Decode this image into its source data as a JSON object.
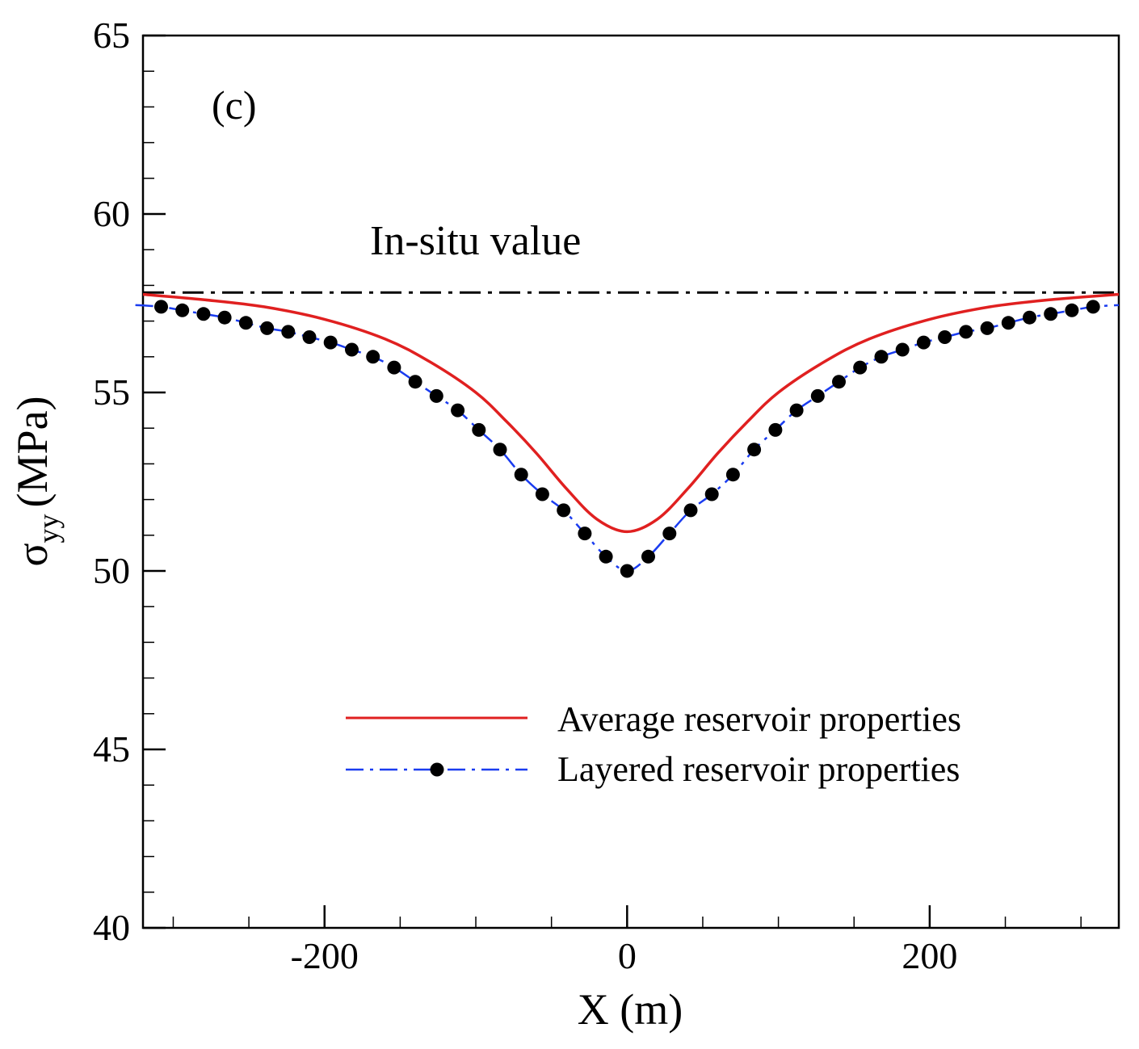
{
  "chart_data": {
    "type": "line",
    "panel_label": "(c)",
    "xlabel": "X (m)",
    "ylabel_symbol": "σ",
    "ylabel_subscript": "yy",
    "ylabel_unit": "(MPa)",
    "xlim": [
      -320,
      325
    ],
    "ylim": [
      40,
      65
    ],
    "x_ticks": [
      -200,
      0,
      200
    ],
    "x_tick_labels": [
      "-200",
      "0",
      "200"
    ],
    "y_ticks": [
      40,
      45,
      50,
      55,
      60,
      65
    ],
    "y_tick_labels": [
      "40",
      "45",
      "50",
      "55",
      "60",
      "65"
    ],
    "annotation": "In-situ value",
    "reference_line": {
      "name": "In-situ value",
      "value": 57.8,
      "color": "#000000"
    },
    "series": [
      {
        "name": "Average reservoir properties",
        "color": "#e02020",
        "style": "solid",
        "x": [
          -320,
          -280,
          -240,
          -200,
          -160,
          -130,
          -100,
          -80,
          -60,
          -40,
          -20,
          0,
          20,
          40,
          60,
          80,
          100,
          130,
          160,
          200,
          240,
          280,
          325
        ],
        "y": [
          57.75,
          57.6,
          57.4,
          57.05,
          56.5,
          55.85,
          55.0,
          54.2,
          53.3,
          52.3,
          51.45,
          51.1,
          51.45,
          52.3,
          53.3,
          54.2,
          55.0,
          55.85,
          56.5,
          57.05,
          57.4,
          57.6,
          57.75
        ]
      },
      {
        "name": "Layered reservoir properties",
        "color": "#1a3cf0",
        "marker_color": "#000000",
        "style": "dashdot",
        "x": [
          -325,
          -308,
          -294,
          -280,
          -266,
          -252,
          -238,
          -224,
          -210,
          -196,
          -182,
          -168,
          -154,
          -140,
          -126,
          -112,
          -98,
          -84,
          -70,
          -56,
          -42,
          -28,
          -14,
          0,
          14,
          28,
          42,
          56,
          70,
          84,
          98,
          112,
          126,
          140,
          154,
          168,
          182,
          196,
          210,
          224,
          238,
          252,
          266,
          280,
          294,
          308,
          325
        ],
        "y": [
          57.45,
          57.4,
          57.3,
          57.2,
          57.1,
          56.95,
          56.8,
          56.7,
          56.55,
          56.4,
          56.2,
          56.0,
          55.7,
          55.3,
          54.9,
          54.5,
          53.95,
          53.4,
          52.7,
          52.15,
          51.7,
          51.05,
          50.4,
          50.0,
          50.4,
          51.05,
          51.7,
          52.15,
          52.7,
          53.4,
          53.95,
          54.5,
          54.9,
          55.3,
          55.7,
          56.0,
          56.2,
          56.4,
          56.55,
          56.7,
          56.8,
          56.95,
          57.1,
          57.2,
          57.3,
          57.4,
          57.45
        ]
      }
    ],
    "legend": {
      "placement": "lower-right",
      "entries": [
        "Average reservoir properties",
        "Layered reservoir properties"
      ]
    }
  }
}
